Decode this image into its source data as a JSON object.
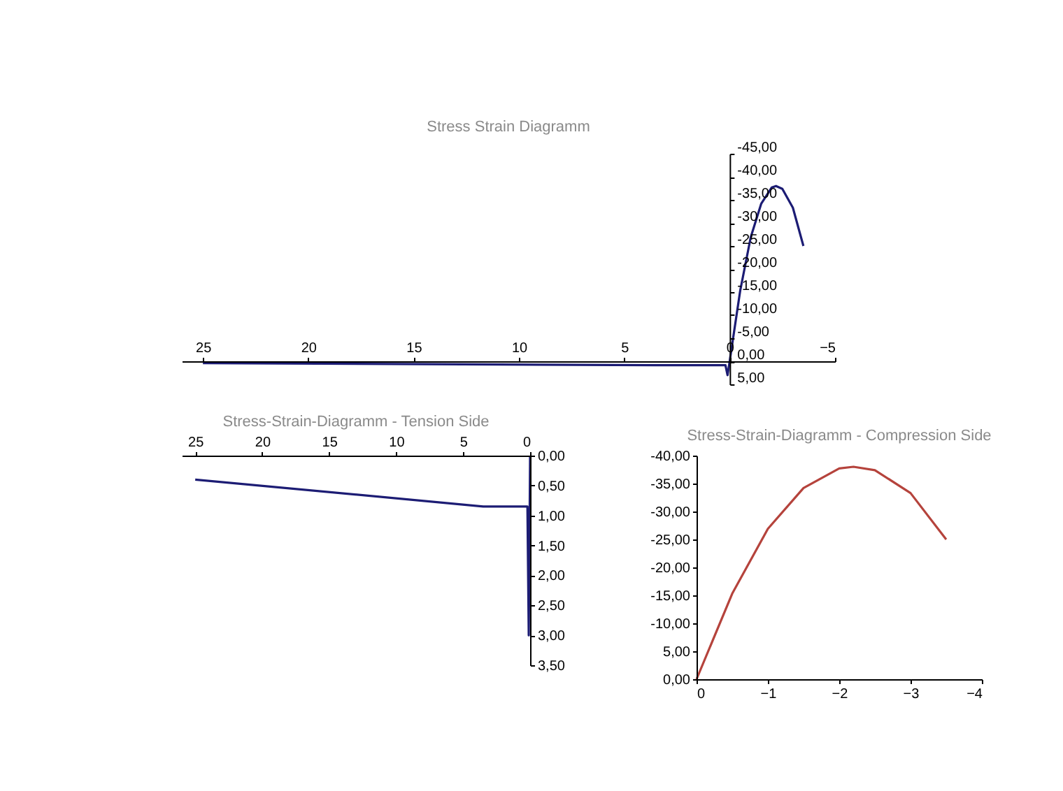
{
  "chart_data": [
    {
      "type": "line",
      "title": "Stress Strain Diagramm",
      "x": [
        -3.5,
        -3,
        -2.5,
        -2.2,
        -2,
        -1.5,
        -1,
        -0.5,
        0,
        0.1,
        0.2,
        3.5,
        25
      ],
      "series": [
        {
          "color": "#1c1c74",
          "values": [
            -25,
            -33.3,
            -37.4,
            -38,
            -37.7,
            -34.2,
            -26.9,
            -15.3,
            0,
            3.0,
            0.85,
            0.85,
            0.4
          ]
        }
      ],
      "xlim": [
        26,
        -5
      ],
      "ylim": [
        5,
        -45
      ],
      "xticks": [
        25,
        20,
        15,
        10,
        5,
        0,
        -5
      ],
      "yticks": [
        {
          "value": 5,
          "label": "5,00"
        },
        {
          "value": 0,
          "label": "0,00"
        },
        {
          "value": -5,
          "label": "-5,00"
        },
        {
          "value": -10,
          "label": "-10,00"
        },
        {
          "value": -15,
          "label": "-15,00"
        },
        {
          "value": -20,
          "label": "-20,00"
        },
        {
          "value": -25,
          "label": "-25,00"
        },
        {
          "value": -30,
          "label": "-30,00"
        },
        {
          "value": -35,
          "label": "-35,00"
        },
        {
          "value": -40,
          "label": "-40,00"
        },
        {
          "value": -45,
          "label": "-45,00"
        }
      ],
      "grid": false,
      "marker": "none",
      "line_style": "solid"
    },
    {
      "type": "line",
      "title": "Stress-Strain-Diagramm - Tension Side",
      "x": [
        0,
        0.1,
        0.2,
        3.5,
        25
      ],
      "series": [
        {
          "color": "#1c1c74",
          "values": [
            0,
            3.0,
            0.85,
            0.85,
            0.4
          ]
        }
      ],
      "xlim": [
        26,
        0
      ],
      "ylim": [
        3.5,
        0
      ],
      "xticks": [
        25,
        20,
        15,
        10,
        5,
        0
      ],
      "yticks": [
        {
          "value": 0,
          "label": "0,00"
        },
        {
          "value": 0.5,
          "label": "0,50"
        },
        {
          "value": 1,
          "label": "1,00"
        },
        {
          "value": 1.5,
          "label": "1,50"
        },
        {
          "value": 2,
          "label": "2,00"
        },
        {
          "value": 2.5,
          "label": "2,50"
        },
        {
          "value": 3,
          "label": "3,00"
        },
        {
          "value": 3.5,
          "label": "3,50"
        }
      ],
      "grid": false,
      "marker": "none",
      "line_style": "solid"
    },
    {
      "type": "line",
      "title": "Stress-Strain-Diagramm - Compression Side",
      "x": [
        0,
        -0.5,
        -1,
        -1.5,
        -2,
        -2.2,
        -2.5,
        -3,
        -3.5
      ],
      "series": [
        {
          "color": "#b5433c",
          "values": [
            0,
            -15.3,
            -26.9,
            -34.2,
            -37.7,
            -38,
            -37.4,
            -33.3,
            -25
          ]
        }
      ],
      "xlim": [
        0,
        -4
      ],
      "ylim": [
        0,
        -40
      ],
      "xticks": [
        0,
        -1,
        -2,
        -3,
        -4
      ],
      "yticks": [
        {
          "value": 0,
          "label": "0,00"
        },
        {
          "value": -5,
          "label": "5,00"
        },
        {
          "value": -10,
          "label": "-10,00"
        },
        {
          "value": -15,
          "label": "-15,00"
        },
        {
          "value": -20,
          "label": "-20,00"
        },
        {
          "value": -25,
          "label": "-25,00"
        },
        {
          "value": -30,
          "label": "-30,00"
        },
        {
          "value": -35,
          "label": "-35,00"
        },
        {
          "value": -40,
          "label": "-40,00"
        }
      ],
      "grid": false,
      "marker": "none",
      "line_style": "solid"
    }
  ]
}
